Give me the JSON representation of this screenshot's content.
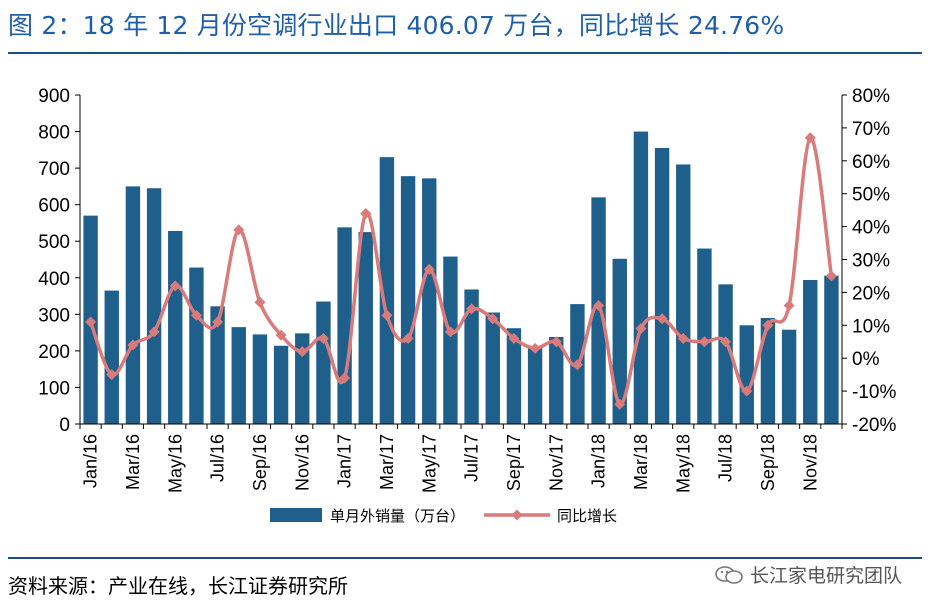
{
  "title": "图 2：18 年 12 月份空调行业出口 406.07 万台，同比增长 24.76%",
  "source": "资料来源：产业在线，长江证券研究所",
  "watermark": "长江家电研究团队",
  "colors": {
    "bar": "#1f5f8c",
    "line": "#d97b7b",
    "title": "#1f5fa8",
    "rule": "#1f4e8a"
  },
  "chart_data": {
    "type": "bar",
    "categories": [
      "Jan/16",
      "Feb/16",
      "Mar/16",
      "Apr/16",
      "May/16",
      "Jun/16",
      "Jul/16",
      "Aug/16",
      "Sep/16",
      "Oct/16",
      "Nov/16",
      "Dec/16",
      "Jan/17",
      "Feb/17",
      "Mar/17",
      "Apr/17",
      "May/17",
      "Jun/17",
      "Jul/17",
      "Aug/17",
      "Sep/17",
      "Oct/17",
      "Nov/17",
      "Dec/17",
      "Jan/18",
      "Feb/18",
      "Mar/18",
      "Apr/18",
      "May/18",
      "Jun/18",
      "Jul/18",
      "Aug/18",
      "Sep/18",
      "Oct/18",
      "Nov/18",
      "Dec/18"
    ],
    "tick_labels": [
      "Jan/16",
      "Mar/16",
      "May/16",
      "Jul/16",
      "Sep/16",
      "Nov/16",
      "Jan/17",
      "Mar/17",
      "May/17",
      "Jul/17",
      "Sep/17",
      "Nov/17",
      "Jan/18",
      "Mar/18",
      "May/18",
      "Jul/18",
      "Sep/18",
      "Nov/18"
    ],
    "series": [
      {
        "name": "单月外销量（万台）",
        "type": "bar",
        "axis": "left",
        "values": [
          570,
          365,
          650,
          645,
          528,
          428,
          322,
          265,
          245,
          214,
          248,
          335,
          538,
          525,
          730,
          678,
          672,
          458,
          368,
          305,
          262,
          214,
          238,
          328,
          620,
          452,
          800,
          755,
          710,
          480,
          382,
          270,
          290,
          258,
          394,
          406
        ]
      },
      {
        "name": "同比增长",
        "type": "line",
        "axis": "right",
        "unit": "%",
        "values": [
          11,
          -5,
          4,
          8,
          22,
          13,
          11,
          39,
          17,
          7,
          2,
          6,
          -6,
          44,
          13,
          6,
          27,
          8,
          15,
          12,
          6,
          3,
          5,
          -2,
          16,
          -14,
          9,
          12,
          6,
          5,
          5,
          -10,
          10,
          16,
          67,
          25
        ]
      }
    ],
    "left_axis": {
      "ylim": [
        0,
        900
      ],
      "ticks": [
        "0",
        "100",
        "200",
        "300",
        "400",
        "500",
        "600",
        "700",
        "800",
        "900"
      ]
    },
    "right_axis": {
      "ylim": [
        -20,
        80
      ],
      "ticks": [
        "-20%",
        "-10%",
        "0%",
        "10%",
        "20%",
        "30%",
        "40%",
        "50%",
        "60%",
        "70%",
        "80%"
      ]
    },
    "grid": false,
    "legend_position": "bottom-center"
  }
}
